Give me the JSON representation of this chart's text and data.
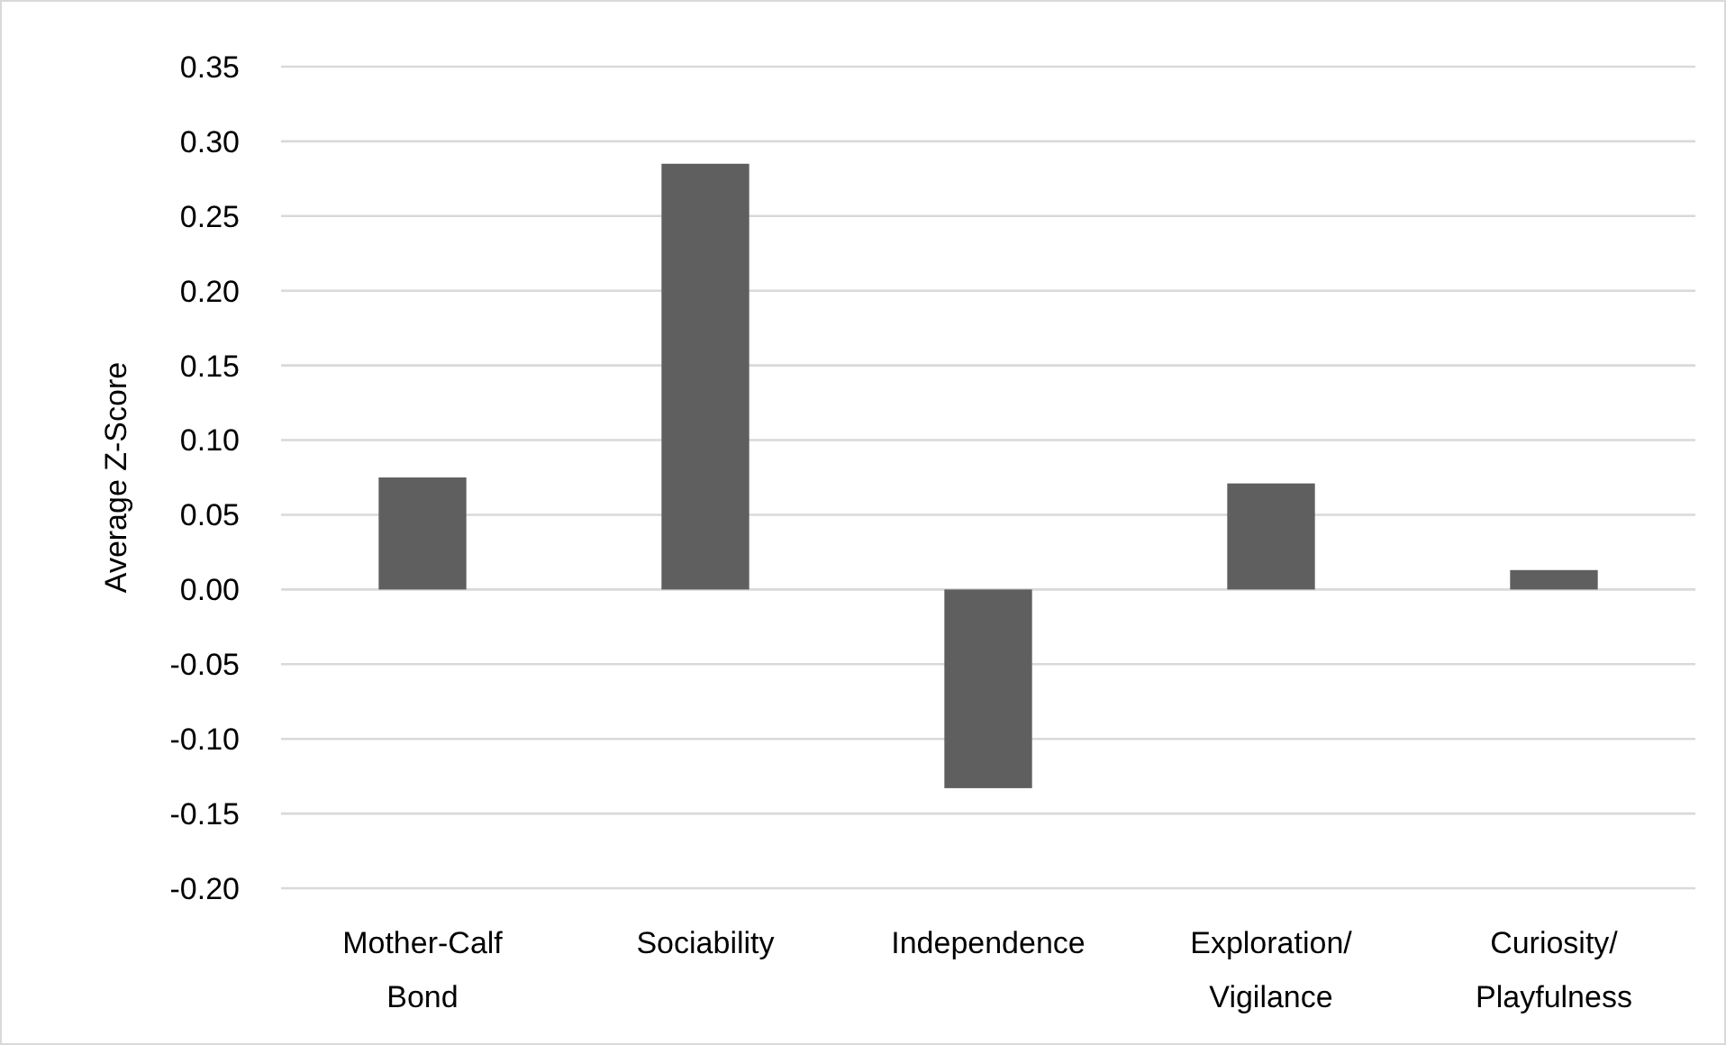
{
  "chart_data": {
    "type": "bar",
    "ylabel": "Average Z-Score",
    "categories": [
      "Mother-Calf Bond",
      "Sociability",
      "Independence",
      "Exploration/ Vigilance",
      "Curiosity/ Playfulness"
    ],
    "values": [
      0.075,
      0.285,
      -0.133,
      0.071,
      0.013
    ],
    "color": "#5f5f5f",
    "ylim": [
      -0.2,
      0.35
    ],
    "yticks": [
      {
        "value": -0.2,
        "label": "-0.20"
      },
      {
        "value": -0.15,
        "label": "-0.15"
      },
      {
        "value": -0.1,
        "label": "-0.10"
      },
      {
        "value": -0.05,
        "label": "-0.05"
      },
      {
        "value": 0,
        "label": "0.00"
      },
      {
        "value": 0.05,
        "label": "0.05"
      },
      {
        "value": 0.1,
        "label": "0.10"
      },
      {
        "value": 0.15,
        "label": "0.15"
      },
      {
        "value": 0.2,
        "label": "0.20"
      },
      {
        "value": 0.25,
        "label": "0.25"
      },
      {
        "value": 0.3,
        "label": "0.30"
      },
      {
        "value": 0.35,
        "label": "0.35"
      }
    ],
    "grid": "y"
  }
}
